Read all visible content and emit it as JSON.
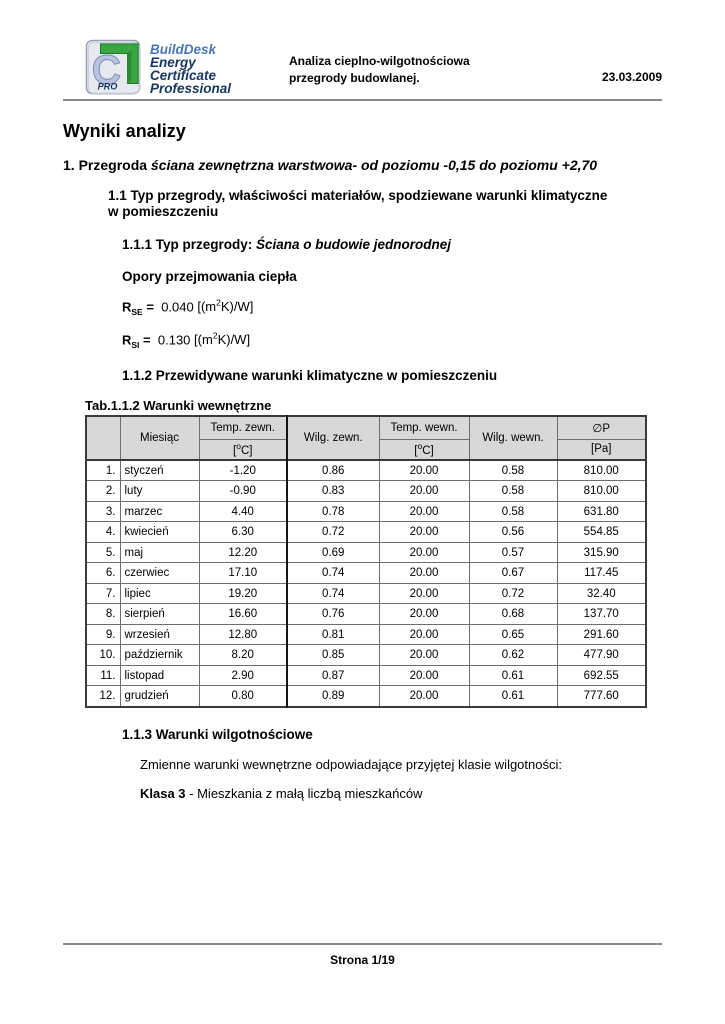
{
  "header": {
    "brand": {
      "name": "BuildDesk",
      "line1": "Energy",
      "line2": "Certificate",
      "line3": "Professional",
      "logo_letter": "C",
      "logo_badge": "PRO",
      "logo_green": "#3aa63f",
      "logo_lavender": "#b9c4e2",
      "logo_navy": "#17365d"
    },
    "doc_title_line1": "Analiza cieplno-wilgotnościowa",
    "doc_title_line2": "przegrody budowlanej.",
    "date": "23.03.2009"
  },
  "page_title": "Wyniki analizy",
  "section1": {
    "prefix": "1. Przegroda ",
    "title_italic": "ściana zewnętrzna warstwowa- od poziomu -0,15 do poziomu +2,70"
  },
  "section1_1": {
    "line1": "1.1 Typ przegrody, właściwości materiałów, spodziewane warunki klimatyczne",
    "line2": "w pomieszczeniu"
  },
  "section1_1_1": {
    "label": "1.1.1 Typ przegrody: ",
    "value": "Ściana o budowie jednorodnej"
  },
  "opory_heading": "Opory przejmowania ciepła",
  "r_values": {
    "unit": {
      "pre": "[(m",
      "sup": "2",
      "post": "K)/W]"
    },
    "rse": {
      "symbol": "R",
      "sub": "SE",
      "eq": "=",
      "value": "0.040"
    },
    "rsi": {
      "symbol": "R",
      "sub": "SI",
      "eq": "=",
      "value": "0.130"
    }
  },
  "section1_1_2": "1.1.2 Przewidywane warunki klimatyczne w pomieszczeniu",
  "table": {
    "caption": "Tab.1.1.2 Warunki wewnętrzne",
    "columns": [
      "",
      "Miesiąc",
      "Temp. zewn.",
      "Wilg. zewn.",
      "Temp. wewn.",
      "Wilg. wewn.",
      "∅P"
    ],
    "units": {
      "temp": {
        "pre": "[",
        "sup": "o",
        "post": "C]"
      },
      "pa": "[Pa]"
    },
    "rows": [
      {
        "no": "1.",
        "month": "styczeń",
        "temp_zewn": "-1.20",
        "wilg_zewn": "0.86",
        "temp_wewn": "20.00",
        "wilg_wewn": "0.58",
        "p": "810.00"
      },
      {
        "no": "2.",
        "month": "luty",
        "temp_zewn": "-0.90",
        "wilg_zewn": "0.83",
        "temp_wewn": "20.00",
        "wilg_wewn": "0.58",
        "p": "810.00"
      },
      {
        "no": "3.",
        "month": "marzec",
        "temp_zewn": "4.40",
        "wilg_zewn": "0.78",
        "temp_wewn": "20.00",
        "wilg_wewn": "0.58",
        "p": "631.80"
      },
      {
        "no": "4.",
        "month": "kwiecień",
        "temp_zewn": "6.30",
        "wilg_zewn": "0.72",
        "temp_wewn": "20.00",
        "wilg_wewn": "0.56",
        "p": "554.85"
      },
      {
        "no": "5.",
        "month": "maj",
        "temp_zewn": "12.20",
        "wilg_zewn": "0.69",
        "temp_wewn": "20.00",
        "wilg_wewn": "0.57",
        "p": "315.90"
      },
      {
        "no": "6.",
        "month": "czerwiec",
        "temp_zewn": "17.10",
        "wilg_zewn": "0.74",
        "temp_wewn": "20.00",
        "wilg_wewn": "0.67",
        "p": "117.45"
      },
      {
        "no": "7.",
        "month": "lipiec",
        "temp_zewn": "19.20",
        "wilg_zewn": "0.74",
        "temp_wewn": "20.00",
        "wilg_wewn": "0.72",
        "p": "32.40"
      },
      {
        "no": "8.",
        "month": "sierpień",
        "temp_zewn": "16.60",
        "wilg_zewn": "0.76",
        "temp_wewn": "20.00",
        "wilg_wewn": "0.68",
        "p": "137.70"
      },
      {
        "no": "9.",
        "month": "wrzesień",
        "temp_zewn": "12.80",
        "wilg_zewn": "0.81",
        "temp_wewn": "20.00",
        "wilg_wewn": "0.65",
        "p": "291.60"
      },
      {
        "no": "10.",
        "month": "październik",
        "temp_zewn": "8.20",
        "wilg_zewn": "0.85",
        "temp_wewn": "20.00",
        "wilg_wewn": "0.62",
        "p": "477.90"
      },
      {
        "no": "11.",
        "month": "listopad",
        "temp_zewn": "2.90",
        "wilg_zewn": "0.87",
        "temp_wewn": "20.00",
        "wilg_wewn": "0.61",
        "p": "692.55"
      },
      {
        "no": "12.",
        "month": "grudzień",
        "temp_zewn": "0.80",
        "wilg_zewn": "0.89",
        "temp_wewn": "20.00",
        "wilg_wewn": "0.61",
        "p": "777.60"
      }
    ]
  },
  "section1_1_3": "1.1.3 Warunki wilgotnościowe",
  "moisture": {
    "line1": "Zmienne warunki wewnętrzne odpowiadające przyjętej klasie wilgotności:",
    "class_label": "Klasa 3",
    "class_desc": " - Mieszkania z małą liczbą mieszkańców"
  },
  "footer": {
    "page_label": "Strona 1/19"
  }
}
